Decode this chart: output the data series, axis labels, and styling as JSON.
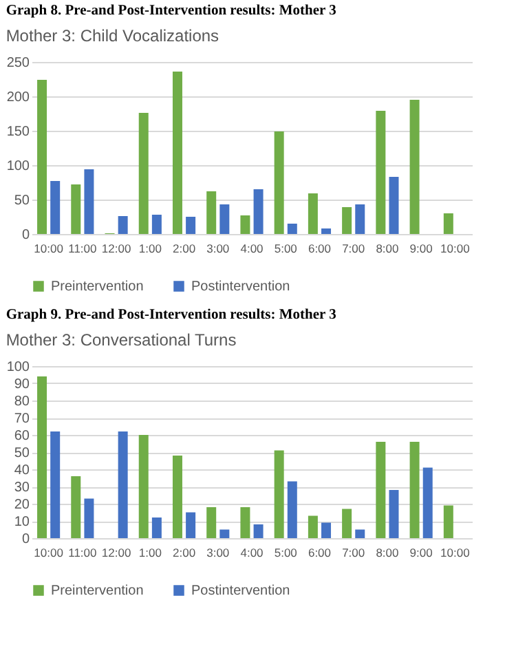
{
  "chart_data": [
    {
      "type": "bar",
      "title": "Graph 8. Pre-and Post-Intervention results: Mother 3",
      "subtitle": "Mother 3: Child Vocalizations",
      "categories": [
        "10:00",
        "11:00",
        "12:00",
        "1:00",
        "2:00",
        "3:00",
        "4:00",
        "5:00",
        "6:00",
        "7:00",
        "8:00",
        "9:00",
        "10:00"
      ],
      "series": [
        {
          "name": "Preintervention",
          "color": "#70ad47",
          "values": [
            224,
            72,
            1,
            176,
            236,
            62,
            27,
            149,
            59,
            39,
            179,
            195,
            30
          ]
        },
        {
          "name": "Postintervention",
          "color": "#4472c4",
          "values": [
            77,
            94,
            26,
            28,
            25,
            43,
            65,
            15,
            8,
            43,
            83,
            null,
            null
          ]
        }
      ],
      "ylim": [
        0,
        250
      ],
      "yticks": [
        0,
        50,
        100,
        150,
        200,
        250
      ],
      "grid": "y",
      "legend": "bottom"
    },
    {
      "type": "bar",
      "title": "Graph 9. Pre-and Post-Intervention results: Mother 3",
      "subtitle": "Mother 3: Conversational Turns",
      "categories": [
        "10:00",
        "11:00",
        "12:00",
        "1:00",
        "2:00",
        "3:00",
        "4:00",
        "5:00",
        "6:00",
        "7:00",
        "8:00",
        "9:00",
        "10:00"
      ],
      "series": [
        {
          "name": "Preintervention",
          "color": "#70ad47",
          "values": [
            94,
            36,
            null,
            60,
            48,
            18,
            18,
            51,
            13,
            17,
            56,
            56,
            19
          ]
        },
        {
          "name": "Postintervention",
          "color": "#4472c4",
          "values": [
            62,
            23,
            62,
            12,
            15,
            5,
            8,
            33,
            9,
            5,
            28,
            41,
            null
          ]
        }
      ],
      "ylim": [
        0,
        100
      ],
      "yticks": [
        0,
        10,
        20,
        30,
        40,
        50,
        60,
        70,
        80,
        90,
        100
      ],
      "grid": "y",
      "legend": "bottom"
    }
  ]
}
